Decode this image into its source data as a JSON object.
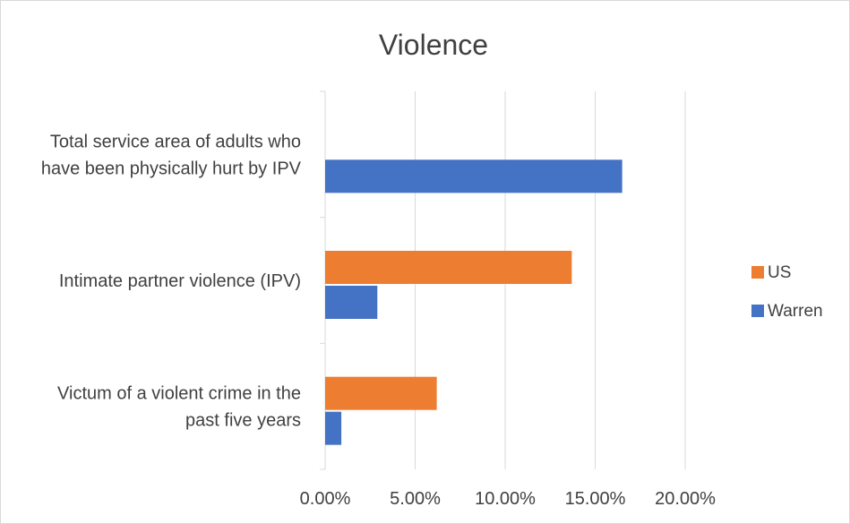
{
  "chart_data": {
    "type": "bar",
    "orientation": "horizontal",
    "title": "Violence",
    "categories": [
      [
        "Total service area of adults who",
        "have been physically hurt by IPV"
      ],
      [
        "Intimate partner violence (IPV)"
      ],
      [
        "Victum of a violent crime in the",
        "past five years"
      ]
    ],
    "series": [
      {
        "name": "US",
        "color": "#ED7D31",
        "values": [
          null,
          13.7,
          6.2
        ]
      },
      {
        "name": "Warren",
        "color": "#4472C4",
        "values": [
          16.5,
          2.9,
          0.9
        ]
      }
    ],
    "xlim": [
      0,
      20
    ],
    "xticks": [
      0,
      5,
      10,
      15,
      20
    ],
    "xtick_labels": [
      "0.00%",
      "5.00%",
      "10.00%",
      "15.00%",
      "20.00%"
    ],
    "grid": true,
    "legend_position": "right"
  }
}
